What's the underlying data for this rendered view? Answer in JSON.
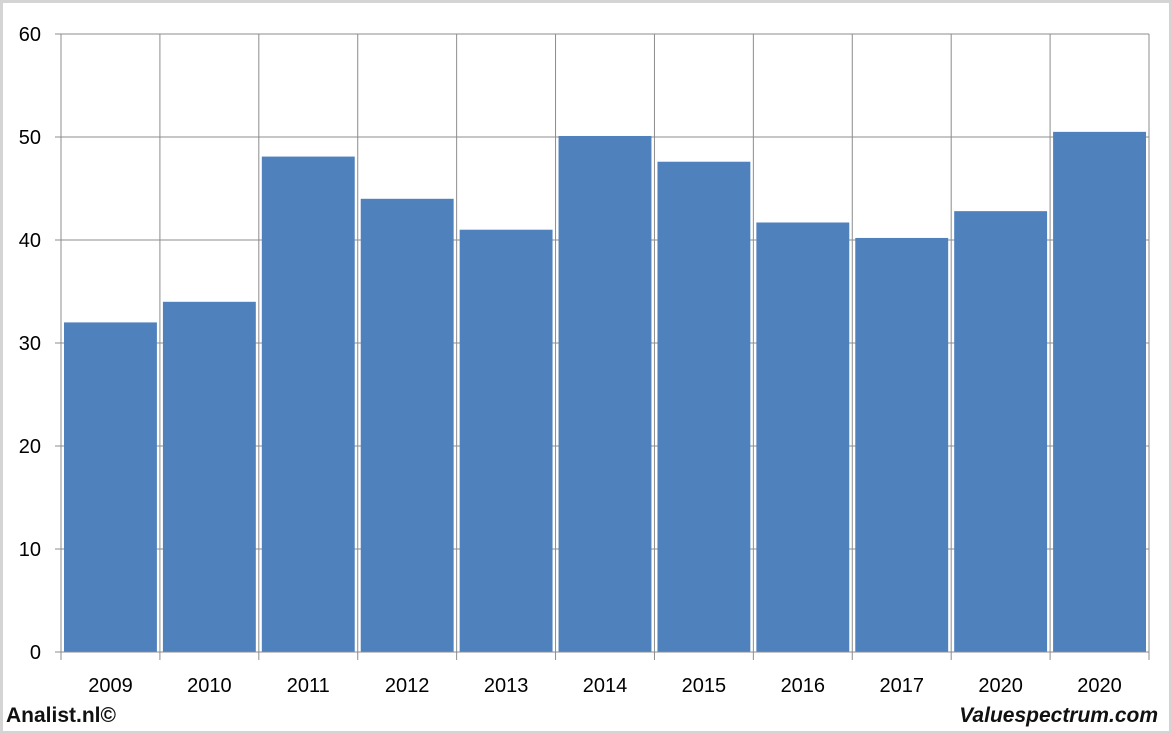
{
  "chart_data": {
    "type": "bar",
    "categories": [
      "2009",
      "2010",
      "2011",
      "2012",
      "2013",
      "2014",
      "2015",
      "2016",
      "2017",
      "2020",
      "2020"
    ],
    "values": [
      32,
      34,
      48.1,
      44,
      41,
      50.1,
      47.6,
      41.7,
      40.2,
      42.8,
      50.5
    ],
    "title": "",
    "xlabel": "",
    "ylabel": "",
    "ylim": [
      0,
      60
    ],
    "yticks": [
      0,
      10,
      20,
      30,
      40,
      50,
      60
    ],
    "grid": true,
    "bar_color": "#4f81bd"
  },
  "footer": {
    "left_text": "Analist.nl©",
    "right_text": "Valuespectrum.com"
  }
}
